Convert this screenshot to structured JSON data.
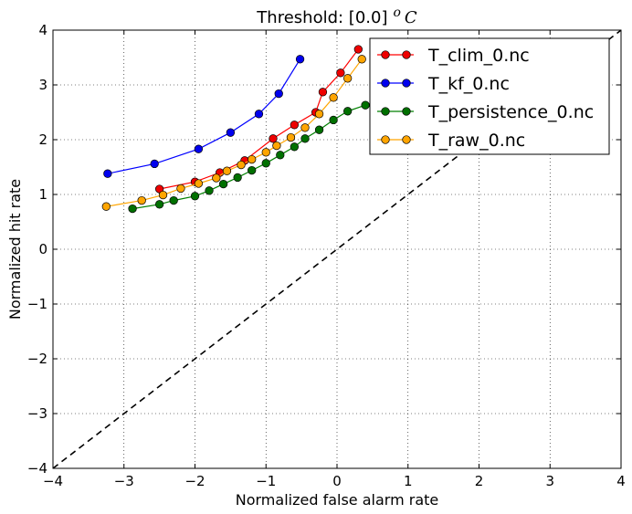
{
  "chart_data": {
    "type": "line",
    "title": "Threshold: [0.0]",
    "title_unit_math": "o C",
    "xlabel": "Normalized false alarm rate",
    "ylabel": "Normalized hit rate",
    "xlim": [
      -4,
      4
    ],
    "ylim": [
      -4,
      4
    ],
    "xticks": [
      -4,
      -3,
      -2,
      -1,
      0,
      1,
      2,
      3,
      4
    ],
    "yticks": [
      -4,
      -3,
      -2,
      -1,
      0,
      1,
      2,
      3,
      4
    ],
    "xtick_labels": [
      "−4",
      "−3",
      "−2",
      "−1",
      "0",
      "1",
      "2",
      "3",
      "4"
    ],
    "ytick_labels": [
      "−4",
      "−3",
      "−2",
      "−1",
      "0",
      "1",
      "2",
      "3",
      "4"
    ],
    "grid": true,
    "legend_position": "top-right",
    "reference_line": {
      "style": "dashed",
      "color": "#000000",
      "x": [
        -4,
        4
      ],
      "y": [
        -4,
        4
      ]
    },
    "series": [
      {
        "name": "T_clim_0.nc",
        "color": "#ff0000",
        "marker_color": "#ee0000",
        "x": [
          -2.5,
          -2.0,
          -1.65,
          -1.3,
          -0.9,
          -0.6,
          -0.3,
          -0.2,
          0.05,
          0.3
        ],
        "y": [
          1.1,
          1.23,
          1.4,
          1.62,
          2.02,
          2.27,
          2.5,
          2.87,
          3.22,
          3.65
        ]
      },
      {
        "name": "T_kf_0.nc",
        "color": "#0000ff",
        "marker_color": "#0000ee",
        "x": [
          -3.23,
          -2.57,
          -1.95,
          -1.5,
          -1.1,
          -0.82,
          -0.52
        ],
        "y": [
          1.38,
          1.56,
          1.83,
          2.13,
          2.47,
          2.84,
          3.47
        ]
      },
      {
        "name": "T_persistence_0.nc",
        "color": "#008000",
        "marker_color": "#007000",
        "x": [
          -2.88,
          -2.5,
          -2.3,
          -2.0,
          -1.8,
          -1.6,
          -1.4,
          -1.2,
          -1.0,
          -0.8,
          -0.6,
          -0.45,
          -0.25,
          -0.05,
          0.15,
          0.4
        ],
        "y": [
          0.74,
          0.82,
          0.89,
          0.97,
          1.07,
          1.19,
          1.31,
          1.44,
          1.57,
          1.72,
          1.87,
          2.02,
          2.18,
          2.36,
          2.52,
          2.63
        ]
      },
      {
        "name": "T_raw_0.nc",
        "color": "#ffa500",
        "marker_color": "#ffa500",
        "x": [
          -3.25,
          -2.75,
          -2.45,
          -2.2,
          -1.95,
          -1.7,
          -1.55,
          -1.35,
          -1.2,
          -1.0,
          -0.85,
          -0.65,
          -0.45,
          -0.25,
          -0.05,
          0.15,
          0.35
        ],
        "y": [
          0.78,
          0.89,
          0.99,
          1.11,
          1.2,
          1.3,
          1.43,
          1.54,
          1.64,
          1.77,
          1.89,
          2.04,
          2.22,
          2.47,
          2.77,
          3.12,
          3.47
        ]
      }
    ]
  }
}
